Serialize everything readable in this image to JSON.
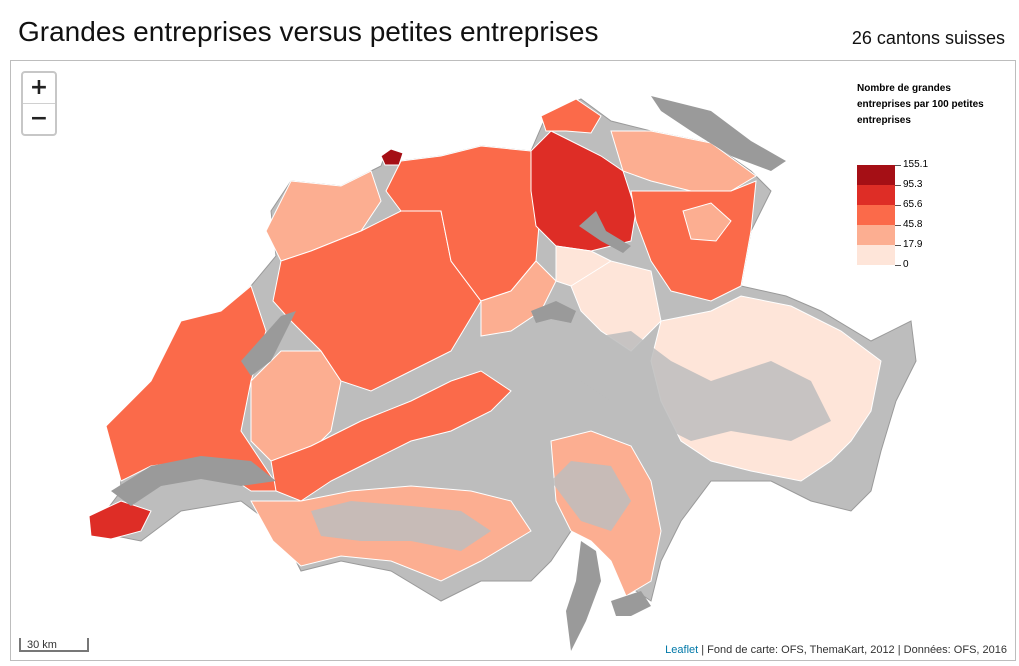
{
  "header": {
    "title": "Grandes entreprises versus petites entreprises",
    "subtitle": "26 cantons suisses"
  },
  "zoom": {
    "in_label": "+",
    "out_label": "−"
  },
  "legend": {
    "title": "Nombre de grandes entreprises par 100 petites entreprises",
    "classes": [
      {
        "label": "155.1",
        "color": "#a50f15"
      },
      {
        "label": "95.3",
        "color": "#de2d26"
      },
      {
        "label": "65.6",
        "color": "#fb6a4a"
      },
      {
        "label": "45.8",
        "color": "#fcae91"
      },
      {
        "label": "17.9",
        "color": "#fee5d9"
      },
      {
        "label": "0",
        "color": ""
      }
    ]
  },
  "map_colors": {
    "land": "#bdbdbd",
    "lake": "#9a9a9a",
    "class_1": "#a50f15",
    "class_2": "#de2d26",
    "class_3": "#fb6a4a",
    "class_4": "#fcae91",
    "class_5": "#fee5d9"
  },
  "scalebar": {
    "label": "30 km"
  },
  "attribution": {
    "link": "Leaflet",
    "text": " | Fond de carte: OFS, ThemaKart, 2012 | Données: OFS, 2016"
  }
}
